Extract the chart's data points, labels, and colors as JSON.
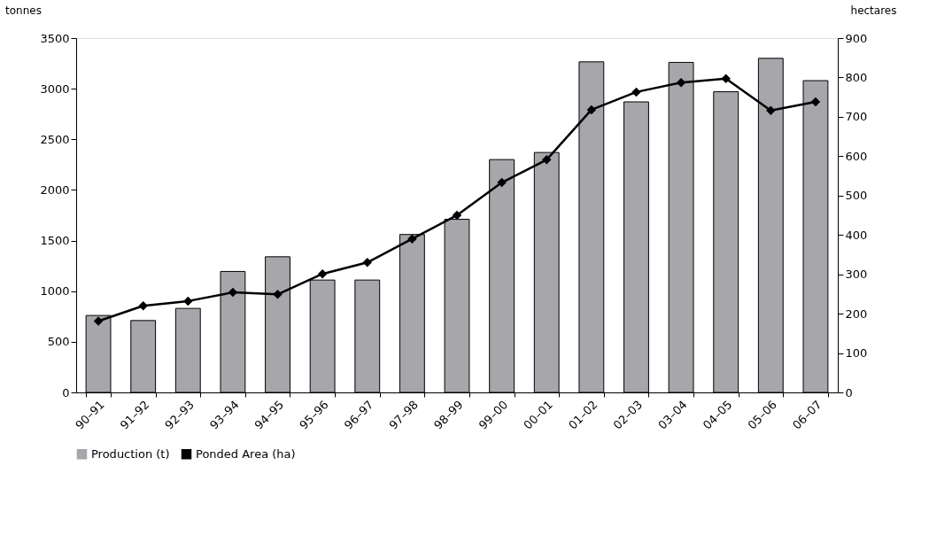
{
  "chart_data": {
    "type": "bar",
    "ylabel": "tonnes",
    "y2label": "hectares",
    "categories": [
      "90–91",
      "91–92",
      "92–93",
      "93–94",
      "94–95",
      "95–96",
      "96–97",
      "97–98",
      "98–99",
      "99–00",
      "00–01",
      "01–02",
      "02–03",
      "03–04",
      "04–05",
      "05–06",
      "06–07"
    ],
    "series": [
      {
        "name": "Production (t)",
        "color": "#a6a6ab",
        "values": [
          760,
          710,
          830,
          1195,
          1340,
          1110,
          1110,
          1560,
          1710,
          2300,
          2370,
          3265,
          2870,
          3260,
          2970,
          3300,
          3080
        ]
      },
      {
        "name": "Ponded Area (ha)",
        "type": "line",
        "axis": "y2",
        "color": "#000000",
        "marker": "diamond",
        "values": [
          181,
          220,
          232,
          254,
          249,
          301,
          330,
          390,
          450,
          533,
          591,
          718,
          763,
          787,
          797,
          716,
          738
        ]
      }
    ],
    "ylim": [
      0,
      3500
    ],
    "yticks": [
      0,
      500,
      1000,
      1500,
      2000,
      2500,
      3000,
      3500
    ],
    "y2lim": [
      0,
      900
    ],
    "y2ticks": [
      0,
      100,
      200,
      300,
      400,
      500,
      600,
      700,
      800,
      900
    ],
    "grid": false,
    "legend": "bottom"
  }
}
